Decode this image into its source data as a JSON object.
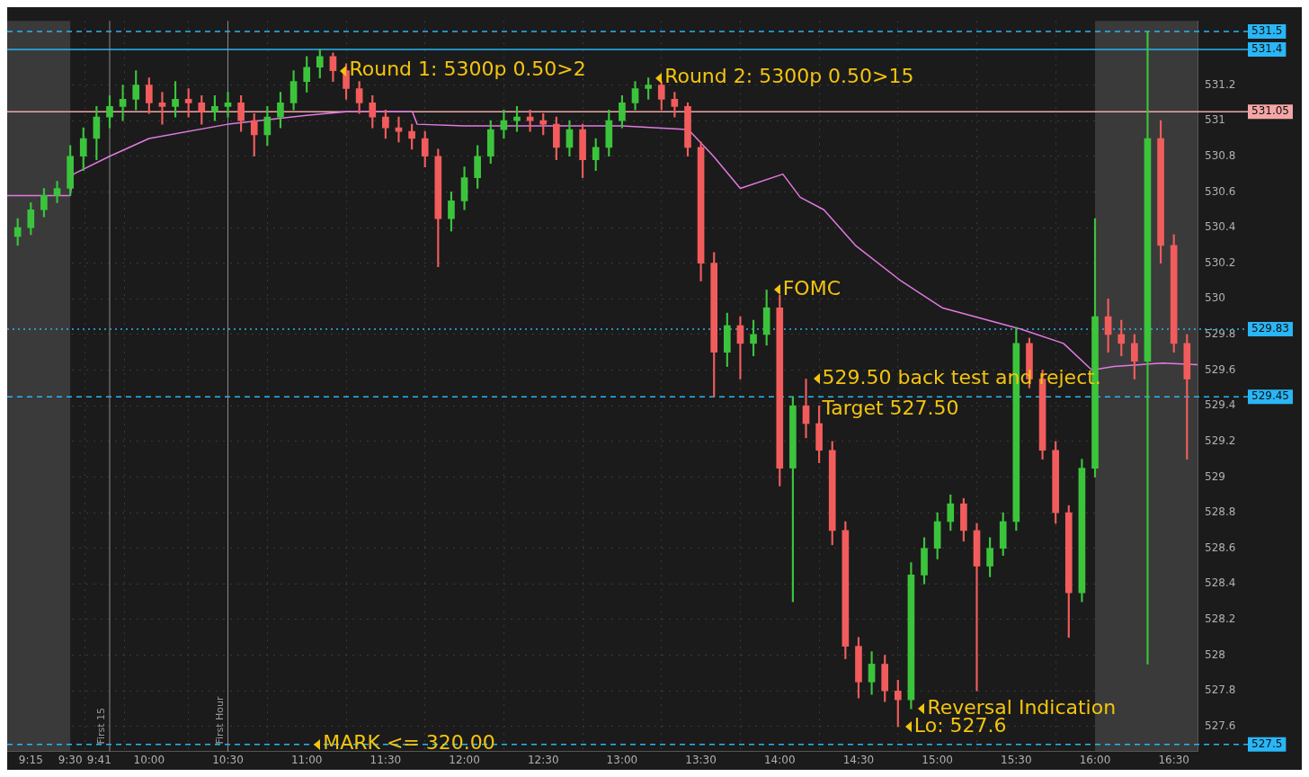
{
  "chart_data": {
    "type": "candlestick",
    "x": [
      9.1667,
      9.25,
      9.3333,
      9.4167,
      9.5,
      9.5833,
      9.6667,
      9.75,
      9.8333,
      9.9167,
      10,
      10.0833,
      10.1667,
      10.25,
      10.3333,
      10.4167,
      10.5,
      10.5833,
      10.6667,
      10.75,
      10.8333,
      10.9167,
      11,
      11.0833,
      11.1667,
      11.25,
      11.3333,
      11.4167,
      11.5,
      11.5833,
      11.6667,
      11.75,
      11.8333,
      11.9167,
      12,
      12.0833,
      12.1667,
      12.25,
      12.3333,
      12.4167,
      12.5,
      12.5833,
      12.6667,
      12.75,
      12.8333,
      12.9167,
      13,
      13.0833,
      13.1667,
      13.25,
      13.3333,
      13.4167,
      13.5,
      13.5833,
      13.6667,
      13.75,
      13.8333,
      13.9167,
      14,
      14.0833,
      14.1667,
      14.25,
      14.3333,
      14.4167,
      14.5,
      14.5833,
      14.6667,
      14.75,
      14.8333,
      14.9167,
      15,
      15.0833,
      15.1667,
      15.25,
      15.3333,
      15.4167,
      15.5,
      15.5833,
      15.6667,
      15.75,
      15.8333,
      15.9167,
      16,
      16.0833,
      16.1667,
      16.25,
      16.3333,
      16.4167,
      16.5,
      16.5833
    ],
    "ohlc": [
      [
        530.35,
        530.45,
        530.3,
        530.4
      ],
      [
        530.4,
        530.54,
        530.36,
        530.5
      ],
      [
        530.5,
        530.62,
        530.46,
        530.58
      ],
      [
        530.58,
        530.66,
        530.54,
        530.62
      ],
      [
        530.62,
        530.86,
        530.58,
        530.8
      ],
      [
        530.8,
        530.96,
        530.72,
        530.9
      ],
      [
        530.9,
        531.08,
        530.78,
        531.02
      ],
      [
        531.02,
        531.14,
        530.96,
        531.08
      ],
      [
        531.08,
        531.2,
        531,
        531.12
      ],
      [
        531.12,
        531.28,
        531.06,
        531.2
      ],
      [
        531.2,
        531.24,
        531.04,
        531.1
      ],
      [
        531.1,
        531.16,
        530.98,
        531.08
      ],
      [
        531.08,
        531.22,
        531.02,
        531.12
      ],
      [
        531.12,
        531.18,
        531.02,
        531.1
      ],
      [
        531.1,
        531.14,
        530.98,
        531.05
      ],
      [
        531.05,
        531.14,
        531,
        531.08
      ],
      [
        531.08,
        531.16,
        531.02,
        531.1
      ],
      [
        531.1,
        531.14,
        530.94,
        531
      ],
      [
        531,
        531.04,
        530.8,
        530.92
      ],
      [
        530.92,
        531.08,
        530.86,
        531.02
      ],
      [
        531.02,
        531.16,
        530.96,
        531.1
      ],
      [
        531.1,
        531.28,
        531.06,
        531.22
      ],
      [
        531.22,
        531.36,
        531.16,
        531.3
      ],
      [
        531.3,
        531.4,
        531.24,
        531.36
      ],
      [
        531.36,
        531.38,
        531.22,
        531.28
      ],
      [
        531.28,
        531.32,
        531.12,
        531.18
      ],
      [
        531.18,
        531.22,
        531.04,
        531.1
      ],
      [
        531.1,
        531.14,
        530.96,
        531.02
      ],
      [
        531.02,
        531.06,
        530.9,
        530.96
      ],
      [
        530.96,
        531.02,
        530.88,
        530.94
      ],
      [
        530.94,
        530.98,
        530.84,
        530.9
      ],
      [
        530.9,
        530.94,
        530.74,
        530.8
      ],
      [
        530.8,
        530.84,
        530.18,
        530.45
      ],
      [
        530.45,
        530.6,
        530.38,
        530.55
      ],
      [
        530.55,
        530.74,
        530.5,
        530.68
      ],
      [
        530.68,
        530.86,
        530.62,
        530.8
      ],
      [
        530.8,
        531,
        530.76,
        530.95
      ],
      [
        530.95,
        531.06,
        530.9,
        531
      ],
      [
        531,
        531.08,
        530.94,
        531.02
      ],
      [
        531.02,
        531.06,
        530.94,
        531
      ],
      [
        531,
        531.04,
        530.92,
        530.98
      ],
      [
        530.98,
        531.02,
        530.78,
        530.85
      ],
      [
        530.85,
        531,
        530.8,
        530.95
      ],
      [
        530.95,
        530.98,
        530.68,
        530.78
      ],
      [
        530.78,
        530.9,
        530.72,
        530.85
      ],
      [
        530.85,
        531.06,
        530.8,
        531
      ],
      [
        531,
        531.14,
        530.96,
        531.1
      ],
      [
        531.1,
        531.22,
        531.06,
        531.18
      ],
      [
        531.18,
        531.24,
        531.12,
        531.2
      ],
      [
        531.2,
        531.22,
        531.06,
        531.12
      ],
      [
        531.12,
        531.16,
        531.02,
        531.08
      ],
      [
        531.08,
        531.1,
        530.8,
        530.85
      ],
      [
        530.85,
        530.88,
        530.1,
        530.2
      ],
      [
        530.2,
        530.26,
        529.45,
        529.7
      ],
      [
        529.7,
        529.92,
        529.62,
        529.85
      ],
      [
        529.85,
        529.9,
        529.55,
        529.75
      ],
      [
        529.75,
        529.88,
        529.68,
        529.8
      ],
      [
        529.8,
        530.05,
        529.74,
        529.95
      ],
      [
        529.95,
        530.02,
        528.95,
        529.05
      ],
      [
        529.05,
        529.45,
        528.3,
        529.4
      ],
      [
        529.4,
        529.55,
        529.22,
        529.3
      ],
      [
        529.3,
        529.4,
        529.08,
        529.15
      ],
      [
        529.15,
        529.2,
        528.62,
        528.7
      ],
      [
        528.7,
        528.75,
        527.98,
        528.05
      ],
      [
        528.05,
        528.1,
        527.76,
        527.85
      ],
      [
        527.85,
        528.02,
        527.78,
        527.95
      ],
      [
        527.95,
        528,
        527.74,
        527.8
      ],
      [
        527.8,
        527.86,
        527.6,
        527.75
      ],
      [
        527.75,
        528.52,
        527.7,
        528.45
      ],
      [
        528.45,
        528.66,
        528.4,
        528.6
      ],
      [
        528.6,
        528.8,
        528.54,
        528.75
      ],
      [
        528.75,
        528.9,
        528.7,
        528.85
      ],
      [
        528.85,
        528.88,
        528.64,
        528.7
      ],
      [
        528.7,
        528.74,
        527.8,
        528.5
      ],
      [
        528.5,
        528.66,
        528.44,
        528.6
      ],
      [
        528.6,
        528.8,
        528.56,
        528.75
      ],
      [
        528.75,
        529.84,
        528.7,
        529.75
      ],
      [
        529.75,
        529.78,
        529.5,
        529.55
      ],
      [
        529.55,
        529.6,
        529.1,
        529.15
      ],
      [
        529.15,
        529.2,
        528.74,
        528.8
      ],
      [
        528.8,
        528.84,
        528.1,
        528.35
      ],
      [
        528.35,
        529.1,
        528.3,
        529.05
      ],
      [
        529.05,
        530.45,
        529,
        529.9
      ],
      [
        529.9,
        530,
        529.7,
        529.8
      ],
      [
        529.8,
        529.88,
        529.68,
        529.75
      ],
      [
        529.75,
        529.8,
        529.55,
        529.65
      ],
      [
        529.65,
        531.5,
        527.95,
        530.9
      ],
      [
        530.9,
        531,
        530.2,
        530.3
      ],
      [
        530.3,
        530.36,
        529.7,
        529.75
      ],
      [
        529.75,
        529.8,
        529.1,
        529.55
      ]
    ],
    "colors": [
      "#3cc43c",
      "#3cc43c",
      "#3cc43c",
      "#3cc43c",
      "#3cc43c",
      "#3cc43c",
      "#3cc43c",
      "#3cc43c",
      "#3cc43c",
      "#3cc43c",
      "#f25c5c",
      "#f25c5c",
      "#3cc43c",
      "#f25c5c",
      "#f25c5c",
      "#3cc43c",
      "#3cc43c",
      "#f25c5c",
      "#f25c5c",
      "#3cc43c",
      "#3cc43c",
      "#3cc43c",
      "#3cc43c",
      "#3cc43c",
      "#f25c5c",
      "#f25c5c",
      "#f25c5c",
      "#f25c5c",
      "#f25c5c",
      "#f25c5c",
      "#f25c5c",
      "#f25c5c",
      "#f25c5c",
      "#3cc43c",
      "#3cc43c",
      "#3cc43c",
      "#3cc43c",
      "#3cc43c",
      "#3cc43c",
      "#f25c5c",
      "#f25c5c",
      "#f25c5c",
      "#3cc43c",
      "#f25c5c",
      "#3cc43c",
      "#3cc43c",
      "#3cc43c",
      "#3cc43c",
      "#3cc43c",
      "#f25c5c",
      "#f25c5c",
      "#f25c5c",
      "#f25c5c",
      "#f25c5c",
      "#3cc43c",
      "#f25c5c",
      "#3cc43c",
      "#3cc43c",
      "#f25c5c",
      "#3cc43c",
      "#f25c5c",
      "#f25c5c",
      "#f25c5c",
      "#f25c5c",
      "#f25c5c",
      "#3cc43c",
      "#f25c5c",
      "#f25c5c",
      "#3cc43c",
      "#3cc43c",
      "#3cc43c",
      "#3cc43c",
      "#f25c5c",
      "#f25c5c",
      "#3cc43c",
      "#3cc43c",
      "#3cc43c",
      "#f25c5c",
      "#f25c5c",
      "#f25c5c",
      "#f25c5c",
      "#3cc43c",
      "#3cc43c",
      "#f25c5c",
      "#f25c5c",
      "#f25c5c",
      "#3cc43c",
      "#f25c5c",
      "#f25c5c",
      "#f25c5c"
    ],
    "series": [
      {
        "type": "line",
        "color": "#e27ae2",
        "x": [
          9.1,
          9.5,
          9.52,
          9.75,
          10,
          10.5,
          11,
          11.25,
          11.67,
          11.7,
          12,
          12.5,
          13,
          13.42,
          13.58,
          13.75,
          14.02,
          14.13,
          14.28,
          14.48,
          14.77,
          15.03,
          15.32,
          15.53,
          15.8,
          15.98,
          16.12,
          16.43,
          16.65
        ],
        "values": [
          530.58,
          530.58,
          530.7,
          530.8,
          530.9,
          530.98,
          531.03,
          531.05,
          531.05,
          530.98,
          530.97,
          530.97,
          530.97,
          530.95,
          530.8,
          530.62,
          530.7,
          530.57,
          530.5,
          530.3,
          530.1,
          529.95,
          529.88,
          529.83,
          529.75,
          529.6,
          529.62,
          529.64,
          529.63
        ]
      }
    ],
    "xlim": [
      9.1,
      16.65
    ],
    "xticks": [
      {
        "value": 9.25,
        "label": "9:15"
      },
      {
        "value": 9.5,
        "label": "9:30"
      },
      {
        "value": 9.6833,
        "label": "9:41"
      },
      {
        "value": 10,
        "label": "10:00"
      },
      {
        "value": 10.5,
        "label": "10:30"
      },
      {
        "value": 11,
        "label": "11:00"
      },
      {
        "value": 11.5,
        "label": "11:30"
      },
      {
        "value": 12,
        "label": "12:00"
      },
      {
        "value": 12.5,
        "label": "12:30"
      },
      {
        "value": 13,
        "label": "13:00"
      },
      {
        "value": 13.5,
        "label": "13:30"
      },
      {
        "value": 14,
        "label": "14:00"
      },
      {
        "value": 14.5,
        "label": "14:30"
      },
      {
        "value": 15,
        "label": "15:00"
      },
      {
        "value": 15.5,
        "label": "15:30"
      },
      {
        "value": 16,
        "label": "16:00"
      },
      {
        "value": 16.5,
        "label": "16:30"
      }
    ],
    "ylim": [
      527.46,
      531.56
    ],
    "yticks": [
      527.6,
      527.8,
      528,
      528.2,
      528.4,
      528.6,
      528.8,
      529,
      529.2,
      529.4,
      529.6,
      529.8,
      530,
      530.2,
      530.4,
      530.6,
      530.8,
      531,
      531.2
    ],
    "grid": true,
    "legend": false,
    "bands": [
      {
        "axis": "x",
        "from": 9.1,
        "to": 9.5,
        "color": "#3a3a3a"
      },
      {
        "axis": "x",
        "from": 16,
        "to": 16.65,
        "color": "#3a3a3a"
      }
    ],
    "ref_lines": [
      {
        "axis": "y",
        "value": 531.5,
        "label": "531.5",
        "color": "#29b6f6",
        "line_style": "dashed"
      },
      {
        "axis": "y",
        "value": 531.4,
        "label": "531.4",
        "color": "#29b6f6",
        "line_style": "solid"
      },
      {
        "axis": "y",
        "value": 531.05,
        "label": "531.05",
        "color": "#f4a6a6",
        "line_style": "solid"
      },
      {
        "axis": "y",
        "value": 529.83,
        "label": "529.83",
        "color": "#29b6f6",
        "line_style": "dotted"
      },
      {
        "axis": "y",
        "value": 529.45,
        "label": "529.45",
        "color": "#29b6f6",
        "line_style": "dashed"
      },
      {
        "axis": "y",
        "value": 527.5,
        "label": "527.5",
        "color": "#29b6f6",
        "line_style": "dashed"
      },
      {
        "axis": "x",
        "value": 9.75,
        "label": "First 15",
        "color": "#8a8a8a",
        "line_style": "solid"
      },
      {
        "axis": "x",
        "value": 10.5,
        "label": "First Hour",
        "color": "#8a8a8a",
        "line_style": "solid"
      }
    ],
    "annotations": [
      {
        "text": "Round 1: 5300p 0.50>2",
        "x": 11.1667,
        "y": 531.28
      },
      {
        "text": "Round 2: 5300p 0.50>15",
        "x": 13.1667,
        "y": 531.24
      },
      {
        "text": "FOMC",
        "x": 13.9167,
        "y": 530.05
      },
      {
        "text": "529.50 back test and reject.\nTarget 527.50",
        "x": 14.1667,
        "y": 529.55
      },
      {
        "text": "Reversal Indication",
        "x": 14.8333,
        "y": 527.7
      },
      {
        "text": "Lo: 527.6",
        "x": 14.75,
        "y": 527.6
      },
      {
        "text": "MARK <= 320.00",
        "x": 11.0,
        "y": 527.5
      }
    ]
  }
}
